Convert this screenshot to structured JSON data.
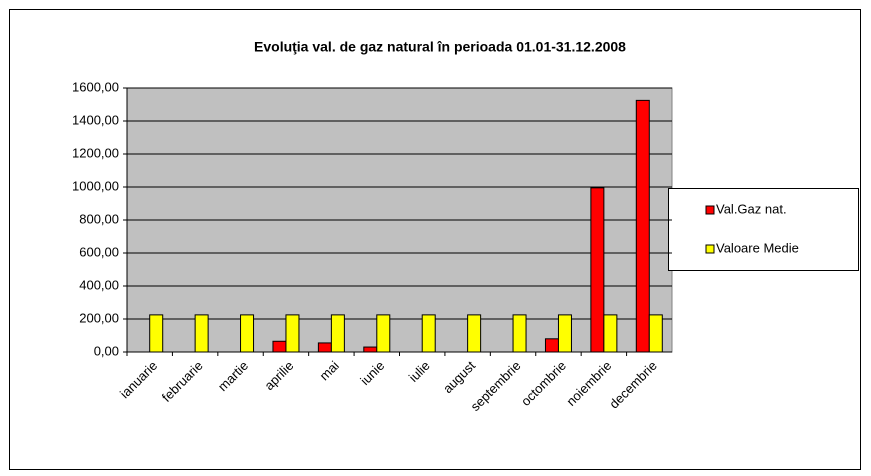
{
  "chart_data": {
    "type": "bar",
    "title": "Evoluţia val. de gaz natural în perioada 01.01-31.12.2008",
    "categories": [
      "ianuarie",
      "februarie",
      "martie",
      "aprilie",
      "mai",
      "iunie",
      "iulie",
      "august",
      "septembrie",
      "octombrie",
      "noiembrie",
      "decembrie"
    ],
    "series": [
      {
        "name": "Val.Gaz nat.",
        "color": "#ff0000",
        "values": [
          0,
          0,
          0,
          65,
          55,
          30,
          0,
          0,
          0,
          80,
          995,
          1525
        ]
      },
      {
        "name": "Valoare Medie",
        "color": "#ffff00",
        "values": [
          225,
          225,
          225,
          225,
          225,
          225,
          225,
          225,
          225,
          225,
          225,
          225
        ]
      }
    ],
    "ylim": [
      0,
      1600
    ],
    "yticks": [
      {
        "value": 0,
        "label": "0,00"
      },
      {
        "value": 200,
        "label": "200,00"
      },
      {
        "value": 400,
        "label": "400,00"
      },
      {
        "value": 600,
        "label": "600,00"
      },
      {
        "value": 800,
        "label": "800,00"
      },
      {
        "value": 1000,
        "label": "1000,00"
      },
      {
        "value": 1200,
        "label": "1200,00"
      },
      {
        "value": 1400,
        "label": "1400,00"
      },
      {
        "value": 1600,
        "label": "1600,00"
      }
    ],
    "grid": true,
    "legend": "right"
  }
}
